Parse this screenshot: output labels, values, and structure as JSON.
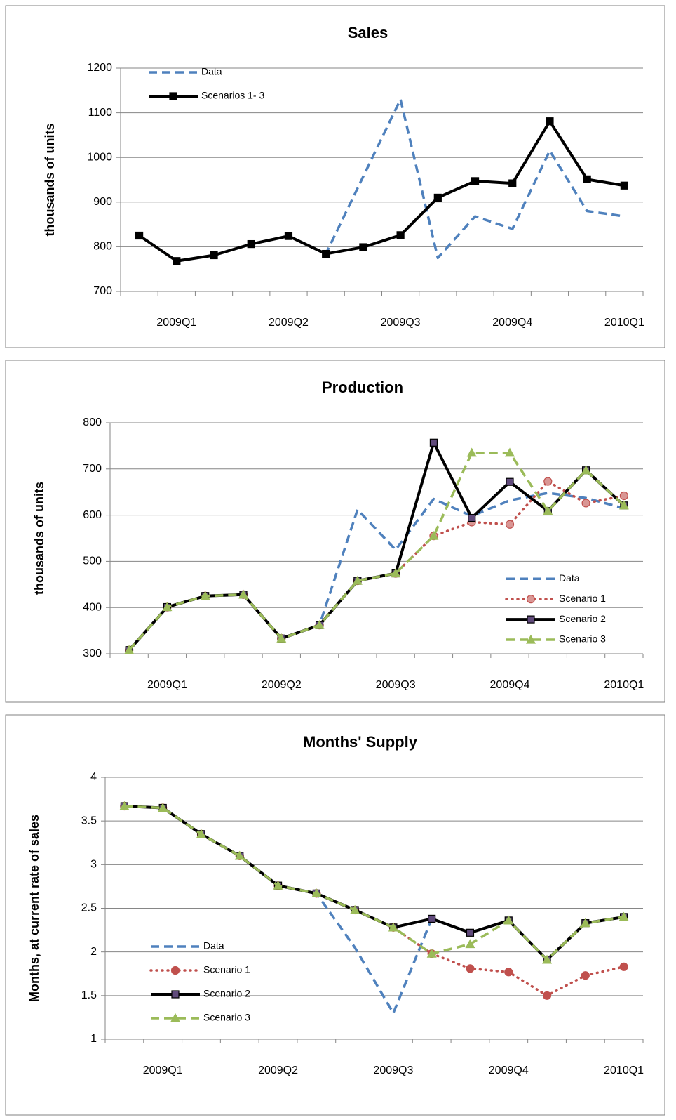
{
  "chart_data": [
    {
      "type": "line",
      "title": "Sales",
      "y_label": "thousands of units",
      "categories": [
        null,
        "2009Q1",
        null,
        null,
        "2009Q2",
        null,
        null,
        "2009Q3",
        null,
        null,
        "2009Q4",
        null,
        null,
        "2010Q1"
      ],
      "ylim": [
        700,
        1200
      ],
      "yticks": [
        700,
        800,
        900,
        1000,
        1100,
        1200
      ],
      "grid": true,
      "legend": "upper left",
      "series": [
        {
          "name": "Data",
          "color": "#4f81bd",
          "dash": "dashed",
          "marker": "none",
          "values": [
            825,
            768,
            781,
            806,
            824,
            784,
            957,
            1130,
            775,
            868,
            840,
            1015,
            880,
            868
          ]
        },
        {
          "name": "Scenarios 1- 3",
          "color": "#000000",
          "dash": "solid",
          "marker": "square",
          "marker_color": "#000000",
          "values": [
            825,
            768,
            781,
            806,
            824,
            784,
            799,
            826,
            910,
            947,
            942,
            1081,
            951,
            937
          ]
        }
      ]
    },
    {
      "type": "line",
      "title": "Production",
      "y_label": "thousands of units",
      "categories": [
        null,
        "2009Q1",
        null,
        null,
        "2009Q2",
        null,
        null,
        "2009Q3",
        null,
        null,
        "2009Q4",
        null,
        null,
        "2010Q1"
      ],
      "ylim": [
        300,
        800
      ],
      "yticks": [
        300,
        400,
        500,
        600,
        700,
        800
      ],
      "grid": true,
      "legend": "lower right",
      "series": [
        {
          "name": "Data",
          "color": "#4f81bd",
          "dash": "dashed",
          "marker": "none",
          "values": [
            308,
            401,
            425,
            428,
            333,
            362,
            612,
            525,
            635,
            598,
            632,
            648,
            637,
            615
          ]
        },
        {
          "name": "Scenario 1",
          "color": "#c0504d",
          "dash": "dotted",
          "marker": "circle",
          "marker_color": "#d99694",
          "values": [
            308,
            401,
            425,
            428,
            333,
            362,
            458,
            474,
            555,
            585,
            580,
            673,
            626,
            642
          ]
        },
        {
          "name": "Scenario 2",
          "color": "#000000",
          "dash": "solid",
          "marker": "square",
          "marker_color": "#604a7b",
          "values": [
            308,
            401,
            425,
            428,
            333,
            362,
            458,
            474,
            757,
            594,
            672,
            609,
            697,
            621
          ]
        },
        {
          "name": "Scenario 3",
          "color": "#9bbb59",
          "dash": "dashed",
          "marker": "triangle",
          "marker_color": "#9bbb59",
          "values": [
            308,
            401,
            425,
            428,
            333,
            362,
            458,
            474,
            555,
            735,
            735,
            609,
            697,
            621
          ]
        }
      ]
    },
    {
      "type": "line",
      "title": "Months' Supply",
      "y_label": "Months, at current rate of sales",
      "categories": [
        null,
        "2009Q1",
        null,
        null,
        "2009Q2",
        null,
        null,
        "2009Q3",
        null,
        null,
        "2009Q4",
        null,
        null,
        "2010Q1"
      ],
      "ylim": [
        1,
        4
      ],
      "yticks": [
        1,
        1.5,
        2,
        2.5,
        3,
        3.5,
        4
      ],
      "grid": true,
      "legend": "lower left",
      "series": [
        {
          "name": "Data",
          "color": "#4f81bd",
          "dash": "dashed",
          "marker": "none",
          "values": [
            3.67,
            3.65,
            3.35,
            3.1,
            2.76,
            2.67,
            2.05,
            1.3,
            2.38,
            2.22,
            2.36,
            1.91,
            2.33,
            2.4
          ]
        },
        {
          "name": "Scenario 1",
          "color": "#c0504d",
          "dash": "dotted",
          "marker": "circle",
          "marker_color": "#c0504d",
          "values": [
            3.67,
            3.65,
            3.35,
            3.1,
            2.76,
            2.67,
            2.48,
            2.28,
            1.98,
            1.81,
            1.77,
            1.5,
            1.73,
            1.83
          ]
        },
        {
          "name": "Scenario 2",
          "color": "#000000",
          "dash": "solid",
          "marker": "square",
          "marker_color": "#604a7b",
          "values": [
            3.67,
            3.65,
            3.35,
            3.1,
            2.76,
            2.67,
            2.48,
            2.28,
            2.38,
            2.22,
            2.36,
            1.91,
            2.33,
            2.4
          ]
        },
        {
          "name": "Scenario 3",
          "color": "#9bbb59",
          "dash": "dashed",
          "marker": "triangle",
          "marker_color": "#9bbb59",
          "values": [
            3.67,
            3.65,
            3.35,
            3.1,
            2.76,
            2.67,
            2.48,
            2.28,
            1.98,
            2.09,
            2.36,
            1.91,
            2.33,
            2.4
          ]
        }
      ]
    }
  ]
}
